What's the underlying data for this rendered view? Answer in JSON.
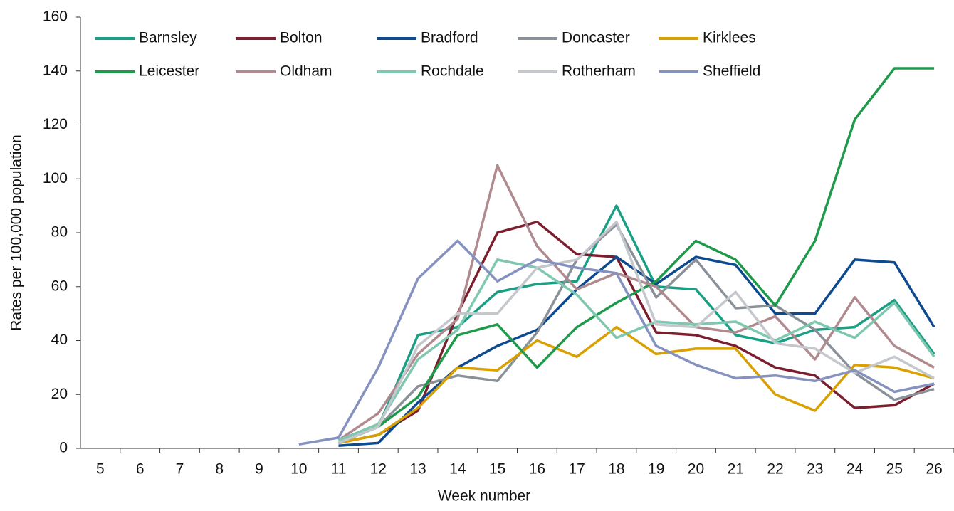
{
  "chart_data": {
    "type": "line",
    "x_label": "Week number",
    "y_label": "Rates per 100,000 population",
    "categories": [
      5,
      6,
      7,
      8,
      9,
      10,
      11,
      12,
      13,
      14,
      15,
      16,
      17,
      18,
      19,
      20,
      21,
      22,
      23,
      24,
      25,
      26
    ],
    "ylim": [
      0,
      160
    ],
    "yticks": [
      0,
      20,
      40,
      60,
      80,
      100,
      120,
      140,
      160
    ],
    "series": [
      {
        "name": "Barnsley",
        "color": "#1a9e84",
        "values": [
          null,
          null,
          null,
          null,
          null,
          null,
          2,
          8,
          42,
          45,
          58,
          61,
          62,
          90,
          60,
          59,
          42,
          39,
          44,
          45,
          55,
          35
        ]
      },
      {
        "name": "Bolton",
        "color": "#7b1e2e",
        "values": [
          null,
          null,
          null,
          null,
          null,
          null,
          2,
          5,
          14,
          50,
          80,
          84,
          72,
          71,
          43,
          42,
          38,
          30,
          27,
          15,
          16,
          24
        ]
      },
      {
        "name": "Bradford",
        "color": "#0d4a8f",
        "values": [
          null,
          null,
          null,
          null,
          null,
          null,
          1,
          2,
          17,
          30,
          38,
          44,
          59,
          71,
          61,
          71,
          68,
          50,
          50,
          70,
          69,
          45
        ]
      },
      {
        "name": "Doncaster",
        "color": "#8a9199",
        "values": [
          null,
          null,
          null,
          null,
          null,
          null,
          2,
          8,
          23,
          27,
          25,
          43,
          70,
          83,
          56,
          70,
          52,
          53,
          44,
          28,
          18,
          22
        ]
      },
      {
        "name": "Kirklees",
        "color": "#d9a000",
        "values": [
          null,
          null,
          null,
          null,
          null,
          null,
          2,
          5,
          15,
          30,
          29,
          40,
          34,
          45,
          35,
          37,
          37,
          20,
          14,
          31,
          30,
          26
        ]
      },
      {
        "name": "Leicester",
        "color": "#1e9a4a",
        "values": [
          null,
          null,
          null,
          null,
          null,
          null,
          2,
          8,
          19,
          42,
          46,
          30,
          45,
          54,
          62,
          77,
          70,
          53,
          77,
          122,
          141,
          141
        ]
      },
      {
        "name": "Oldham",
        "color": "#b08a8f",
        "values": [
          null,
          null,
          null,
          null,
          null,
          null,
          3,
          13,
          35,
          48,
          105,
          75,
          59,
          65,
          60,
          45,
          43,
          49,
          33,
          56,
          38,
          30
        ]
      },
      {
        "name": "Rochdale",
        "color": "#7fc8b0",
        "values": [
          null,
          null,
          null,
          null,
          null,
          null,
          3,
          9,
          33,
          44,
          70,
          67,
          57,
          41,
          47,
          46,
          47,
          40,
          47,
          41,
          54,
          34
        ]
      },
      {
        "name": "Rotherham",
        "color": "#c4c7cc",
        "values": [
          null,
          null,
          null,
          null,
          null,
          null,
          2,
          8,
          38,
          50,
          50,
          67,
          70,
          84,
          46,
          45,
          58,
          39,
          37,
          28,
          34,
          26
        ]
      },
      {
        "name": "Sheffield",
        "color": "#8592c0",
        "values": [
          null,
          null,
          null,
          null,
          null,
          1.5,
          4,
          30,
          63,
          77,
          62,
          70,
          67,
          65,
          38,
          31,
          26,
          27,
          25,
          29,
          21,
          24
        ]
      }
    ]
  }
}
